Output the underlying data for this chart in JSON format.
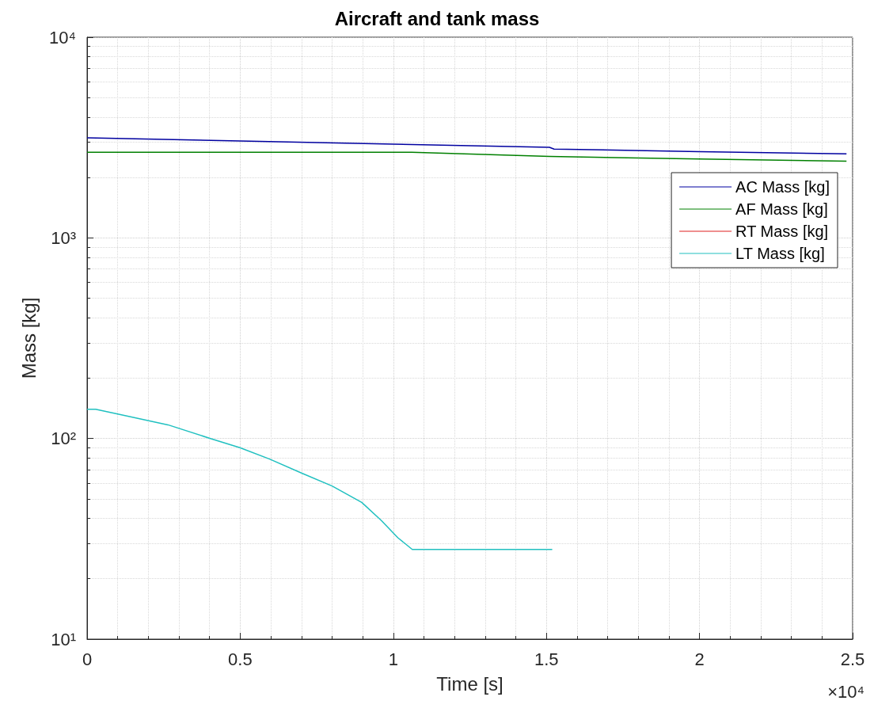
{
  "chart_data": {
    "type": "line",
    "title": "Aircraft and tank mass",
    "xlabel": "Time [s]",
    "ylabel": "Mass [kg]",
    "annotations": [
      "×10⁴"
    ],
    "series": [
      {
        "name": "AC Mass [kg]",
        "color": "#0000a0",
        "x": [
          0,
          0.5,
          1,
          1.51,
          1.525,
          2,
          2.48
        ],
        "values": [
          3150,
          3040,
          2930,
          2825,
          2770,
          2690,
          2620
        ]
      },
      {
        "name": "AF Mass [kg]",
        "color": "#008000",
        "x": [
          0,
          1.06,
          1.51,
          2,
          2.48
        ],
        "values": [
          2670,
          2670,
          2545,
          2470,
          2410
        ]
      },
      {
        "name": "RT Mass [kg]",
        "color": "#e02020"
      },
      {
        "name": "LT Mass [kg]",
        "color": "#20c0c0",
        "x": [
          0,
          0.028,
          0.124,
          0.264,
          0.403,
          0.499,
          0.596,
          0.703,
          0.8,
          0.897,
          0.961,
          1.015,
          1.062,
          1.519
        ],
        "values": [
          140,
          140,
          130,
          117,
          100,
          90,
          79,
          67,
          58,
          48,
          39,
          32,
          28,
          28
        ]
      }
    ],
    "xlim": [
      0,
      2.5
    ],
    "xticks": [
      0,
      0.5,
      1,
      1.5,
      2,
      2.5
    ],
    "ylim": [
      10,
      10000
    ],
    "yticks": [
      {
        "value": 10,
        "label": "10¹"
      },
      {
        "value": 100,
        "label": "10²"
      },
      {
        "value": 1000,
        "label": "10³"
      },
      {
        "value": 10000,
        "label": "10⁴"
      }
    ],
    "log": true,
    "grid": true,
    "legend": "top right",
    "marker": "none",
    "line_style": "solid"
  }
}
